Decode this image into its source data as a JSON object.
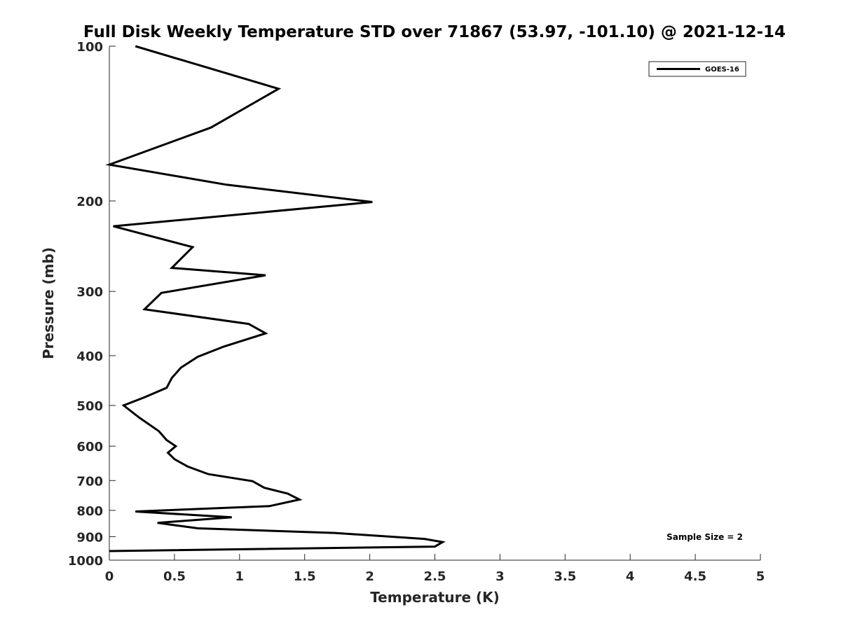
{
  "chart_data": {
    "type": "line",
    "title": "Full Disk Weekly Temperature STD over 71867 (53.97, -101.10) @ 2021-12-14",
    "xlabel": "Temperature (K)",
    "ylabel": "Pressure (mb)",
    "xlim": [
      0,
      5
    ],
    "ylim": [
      100,
      1000
    ],
    "y_scale": "log",
    "y_reversed": true,
    "x_ticks": [
      0,
      0.5,
      1,
      1.5,
      2,
      2.5,
      3,
      3.5,
      4,
      4.5,
      5
    ],
    "x_tick_labels": [
      "0",
      "0.5",
      "1",
      "1.5",
      "2",
      "2.5",
      "3",
      "3.5",
      "4",
      "4.5",
      "5"
    ],
    "y_ticks": [
      100,
      200,
      300,
      400,
      500,
      600,
      700,
      800,
      900,
      1000
    ],
    "y_tick_labels": [
      "100",
      "200",
      "300",
      "400",
      "500",
      "600",
      "700",
      "800",
      "900",
      "1000"
    ],
    "grid": false,
    "legend_position": "top-right",
    "annotation": "Sample Size = 2",
    "series": [
      {
        "name": "GOES-16",
        "color": "#000000",
        "x": [
          0.2,
          1.3,
          0.78,
          0.0,
          0.9,
          2.02,
          0.03,
          0.64,
          0.48,
          1.2,
          0.4,
          0.27,
          1.07,
          1.2,
          0.88,
          0.68,
          0.55,
          0.48,
          0.44,
          0.27,
          0.11,
          0.23,
          0.38,
          0.44,
          0.51,
          0.45,
          0.5,
          0.6,
          0.76,
          1.1,
          1.19,
          1.37,
          1.46,
          1.23,
          0.2,
          0.94,
          0.37,
          0.68,
          1.73,
          2.42,
          2.56,
          2.5,
          0.0
        ],
        "y": [
          100,
          121,
          144,
          170,
          186,
          201,
          224,
          246,
          270,
          279,
          302,
          325,
          347,
          362,
          384,
          402,
          422,
          442,
          462,
          482,
          500,
          528,
          561,
          584,
          600,
          618,
          636,
          657,
          680,
          702,
          723,
          742,
          762,
          785,
          804,
          825,
          846,
          867,
          885,
          909,
          922,
          941,
          960
        ]
      }
    ]
  }
}
